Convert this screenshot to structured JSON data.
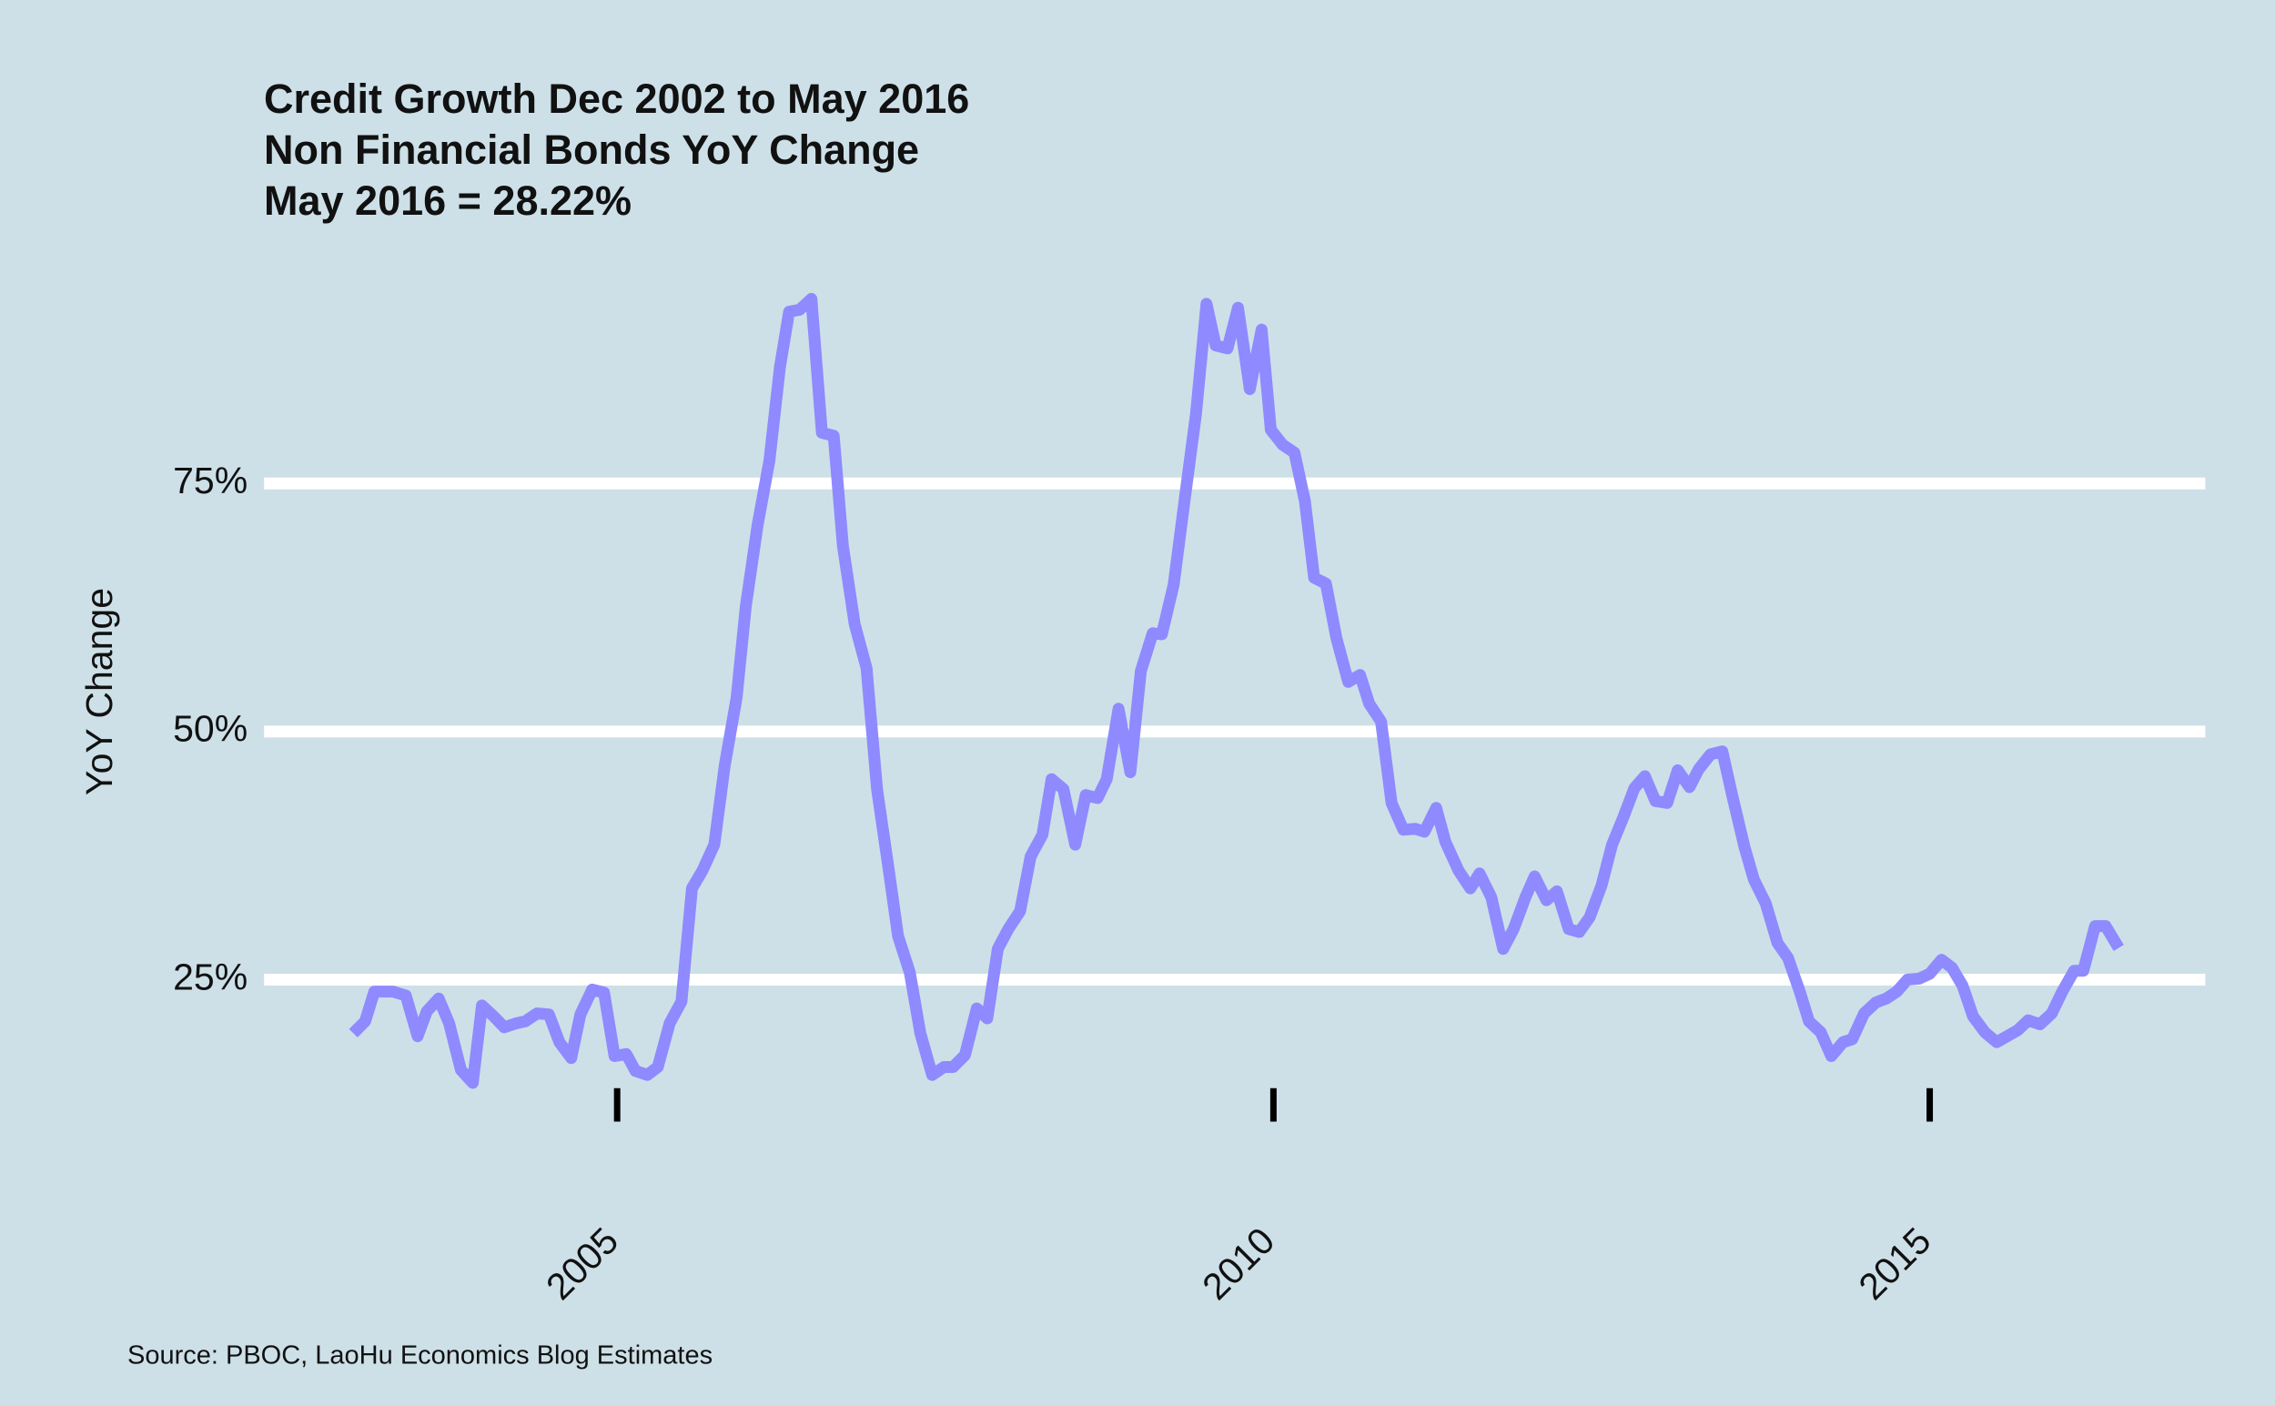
{
  "chart_data": {
    "type": "line",
    "title": [
      "Credit Growth Dec 2002 to May 2016",
      "Non Financial Bonds YoY Change",
      "May 2016 = 28.22%"
    ],
    "ylabel": "YoY Change",
    "caption": "Source: PBOC, LaoHu Economics Blog Estimates",
    "color": "#8f8aff",
    "grid": true,
    "xlim": [
      2002.31,
      2017.1
    ],
    "xticks": [
      2005,
      2010,
      2015
    ],
    "ylim": [
      12.6,
      95.2
    ],
    "yticks": [
      {
        "value": 25,
        "label": "25%"
      },
      {
        "value": 50,
        "label": "50%"
      },
      {
        "value": 75,
        "label": "75%"
      }
    ],
    "x": [
      2002.99,
      2003.08,
      2003.15,
      2003.29,
      2003.39,
      2003.48,
      2003.55,
      2003.64,
      2003.72,
      2003.81,
      2003.9,
      2003.97,
      2004.06,
      2004.14,
      2004.23,
      2004.3,
      2004.39,
      2004.48,
      2004.56,
      2004.65,
      2004.72,
      2004.81,
      2004.9,
      2004.98,
      2005.07,
      2005.14,
      2005.23,
      2005.31,
      2005.4,
      2005.49,
      2005.57,
      2005.65,
      2005.74,
      2005.82,
      2005.91,
      2005.98,
      2006.07,
      2006.16,
      2006.24,
      2006.31,
      2006.39,
      2006.48,
      2006.56,
      2006.65,
      2006.72,
      2006.81,
      2006.9,
      2006.98,
      2007.07,
      2007.14,
      2007.23,
      2007.31,
      2007.4,
      2007.49,
      2007.56,
      2007.65,
      2007.74,
      2007.82,
      2007.9,
      2007.98,
      2008.07,
      2008.15,
      2008.24,
      2008.31,
      2008.4,
      2008.49,
      2008.57,
      2008.66,
      2008.73,
      2008.82,
      2008.91,
      2008.99,
      2009.08,
      2009.15,
      2009.24,
      2009.33,
      2009.41,
      2009.49,
      2009.56,
      2009.65,
      2009.73,
      2009.82,
      2009.91,
      2009.98,
      2010.07,
      2010.16,
      2010.24,
      2010.31,
      2010.4,
      2010.48,
      2010.57,
      2010.66,
      2010.73,
      2010.82,
      2010.9,
      2010.99,
      2011.08,
      2011.15,
      2011.24,
      2011.31,
      2011.41,
      2011.5,
      2011.57,
      2011.66,
      2011.75,
      2011.83,
      2011.92,
      2011.99,
      2012.08,
      2012.16,
      2012.25,
      2012.33,
      2012.41,
      2012.5,
      2012.58,
      2012.67,
      2012.75,
      2012.83,
      2012.91,
      2013.0,
      2013.08,
      2013.17,
      2013.24,
      2013.33,
      2013.42,
      2013.5,
      2013.59,
      2013.66,
      2013.75,
      2013.84,
      2013.92,
      2014.01,
      2014.08,
      2014.17,
      2014.25,
      2014.34,
      2014.41,
      2014.5,
      2014.59,
      2014.67,
      2014.75,
      2014.83,
      2014.92,
      2015.0,
      2015.09,
      2015.17,
      2015.25,
      2015.33,
      2015.42,
      2015.51,
      2015.59,
      2015.67,
      2015.75,
      2015.84,
      2015.93,
      2016.01,
      2016.1,
      2016.17,
      2016.26,
      2016.34,
      2016.44
    ],
    "values": [
      19.6,
      20.8,
      23.8,
      23.8,
      23.4,
      19.3,
      21.8,
      23.1,
      20.6,
      15.9,
      14.6,
      22.4,
      21.3,
      20.2,
      20.6,
      20.8,
      21.6,
      21.5,
      18.7,
      17.1,
      21.5,
      24.0,
      23.7,
      17.3,
      17.5,
      15.8,
      15.4,
      16.2,
      20.6,
      22.8,
      34.2,
      36.0,
      38.6,
      46.6,
      53.4,
      62.6,
      70.8,
      77.3,
      86.7,
      92.3,
      92.5,
      93.6,
      80.1,
      79.8,
      68.7,
      60.8,
      56.4,
      44.2,
      36.0,
      29.4,
      25.7,
      19.6,
      15.4,
      16.2,
      16.2,
      17.4,
      22.1,
      21.1,
      28.1,
      30.1,
      31.9,
      37.4,
      39.6,
      45.2,
      44.2,
      38.6,
      43.6,
      43.3,
      45.2,
      52.3,
      45.9,
      56.1,
      59.9,
      59.8,
      64.8,
      74.0,
      82.0,
      93.1,
      88.9,
      88.6,
      92.7,
      84.5,
      90.5,
      80.4,
      78.9,
      78.1,
      73.2,
      65.5,
      64.9,
      59.4,
      55.0,
      55.7,
      52.8,
      51.0,
      42.8,
      40.1,
      40.2,
      39.9,
      42.3,
      38.9,
      36.0,
      34.2,
      35.7,
      33.3,
      28.1,
      30.1,
      33.3,
      35.4,
      33.0,
      33.9,
      30.1,
      29.8,
      31.3,
      34.5,
      38.6,
      41.5,
      44.3,
      45.5,
      43.0,
      42.8,
      46.1,
      44.4,
      46.2,
      47.7,
      48.0,
      43.3,
      38.3,
      35.1,
      32.7,
      28.7,
      27.2,
      23.8,
      20.8,
      19.7,
      17.3,
      18.7,
      19.0,
      21.6,
      22.7,
      23.1,
      23.8,
      25.0,
      25.1,
      25.6,
      27.0,
      26.2,
      24.4,
      21.3,
      19.7,
      18.7,
      19.3,
      19.9,
      20.9,
      20.5,
      21.6,
      23.8,
      25.9,
      25.9,
      30.4,
      30.4,
      28.2
    ]
  }
}
